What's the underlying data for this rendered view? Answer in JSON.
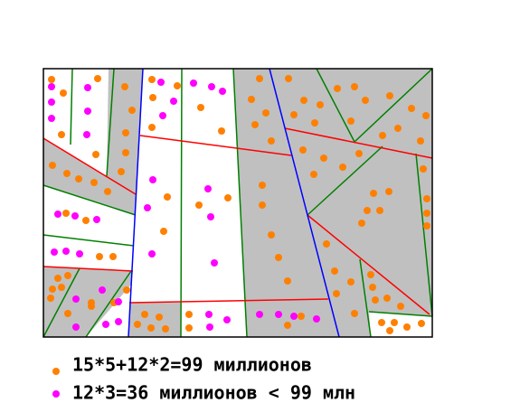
{
  "legend": {
    "items": [
      {
        "text": "15*5+12*2=99 миллионов"
      },
      {
        "text": "12*3=36 миллионов < 99 млн"
      }
    ]
  }
}
